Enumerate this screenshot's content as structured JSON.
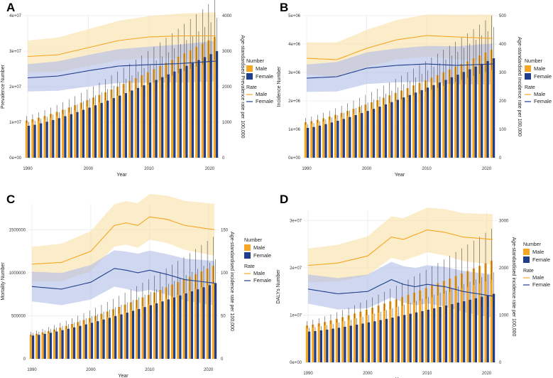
{
  "colors": {
    "male": "#F5A623",
    "female": "#1F3E8C",
    "male_band": "#F9DFA6",
    "female_band": "#AFBCE8",
    "grid": "#EBEBEB"
  },
  "legend": {
    "number_title": "Number",
    "rate_title": "Rate",
    "male": "Male",
    "female": "Female"
  },
  "chart_data": [
    {
      "letter": "A",
      "type": "bar+line",
      "years": [
        1990,
        1991,
        1992,
        1993,
        1994,
        1995,
        1996,
        1997,
        1998,
        1999,
        2000,
        2001,
        2002,
        2003,
        2004,
        2005,
        2006,
        2007,
        2008,
        2009,
        2010,
        2011,
        2012,
        2013,
        2014,
        2015,
        2016,
        2017,
        2018,
        2019,
        2020,
        2021
      ],
      "xticks": [
        1990,
        2000,
        2010,
        2020
      ],
      "xlabel": "Year",
      "ylabel_left": "Prevalence Number",
      "ylabel_right": "Age-standardised Prevalence rate per 100,000",
      "yleft_ticks": [
        "0e+00",
        "1e+07",
        "2e+07",
        "3e+07",
        "4e+07"
      ],
      "yleft_max": 40000000,
      "yright_ticks": [
        "0",
        "1000",
        "2000",
        "3000",
        "4000"
      ],
      "yright_max": 4000,
      "series_number": [
        {
          "name": "Male",
          "start": 10500000,
          "end": 34000000
        },
        {
          "name": "Female",
          "start": 9000000,
          "end": 30000000
        }
      ],
      "series_rate": [
        {
          "name": "Male",
          "points": [
            [
              1990,
              2850
            ],
            [
              1995,
              2900
            ],
            [
              2000,
              3100
            ],
            [
              2005,
              3300
            ],
            [
              2010,
              3400
            ],
            [
              2015,
              3430
            ],
            [
              2021,
              3430
            ]
          ]
        },
        {
          "name": "Female",
          "points": [
            [
              1990,
              2250
            ],
            [
              1995,
              2300
            ],
            [
              2000,
              2450
            ],
            [
              2005,
              2580
            ],
            [
              2010,
              2620
            ],
            [
              2015,
              2650
            ],
            [
              2021,
              2720
            ]
          ]
        }
      ]
    },
    {
      "letter": "B",
      "type": "bar+line",
      "years": [
        1990,
        1991,
        1992,
        1993,
        1994,
        1995,
        1996,
        1997,
        1998,
        1999,
        2000,
        2001,
        2002,
        2003,
        2004,
        2005,
        2006,
        2007,
        2008,
        2009,
        2010,
        2011,
        2012,
        2013,
        2014,
        2015,
        2016,
        2017,
        2018,
        2019,
        2020,
        2021
      ],
      "xticks": [
        1990,
        2000,
        2010,
        2020
      ],
      "xlabel": "Year",
      "ylabel_left": "Incidence Number",
      "ylabel_right": "Age-standardised Incidence rate per 100,000",
      "yleft_ticks": [
        "0e+00",
        "1e+06",
        "2e+06",
        "3e+06",
        "4e+06",
        "5e+06"
      ],
      "yleft_max": 5000000,
      "yright_ticks": [
        "0",
        "100",
        "200",
        "300",
        "400",
        "500"
      ],
      "yright_max": 500,
      "series_number": [
        {
          "name": "Male",
          "start": 1250000,
          "end": 3800000
        },
        {
          "name": "Female",
          "start": 1050000,
          "end": 3500000
        }
      ],
      "series_rate": [
        {
          "name": "Male",
          "points": [
            [
              1990,
              350
            ],
            [
              1995,
              345
            ],
            [
              2000,
              385
            ],
            [
              2005,
              415
            ],
            [
              2010,
              430
            ],
            [
              2015,
              425
            ],
            [
              2021,
              420
            ]
          ]
        },
        {
          "name": "Female",
          "points": [
            [
              1990,
              280
            ],
            [
              1995,
              285
            ],
            [
              2000,
              315
            ],
            [
              2005,
              325
            ],
            [
              2010,
              330
            ],
            [
              2015,
              325
            ],
            [
              2021,
              330
            ]
          ]
        }
      ]
    },
    {
      "letter": "C",
      "type": "bar+line",
      "years": [
        1990,
        1991,
        1992,
        1993,
        1994,
        1995,
        1996,
        1997,
        1998,
        1999,
        2000,
        2001,
        2002,
        2003,
        2004,
        2005,
        2006,
        2007,
        2008,
        2009,
        2010,
        2011,
        2012,
        2013,
        2014,
        2015,
        2016,
        2017,
        2018,
        2019,
        2020,
        2021
      ],
      "xticks": [
        1990,
        2000,
        2010,
        2020
      ],
      "xlabel": "Year",
      "ylabel_left": "Mortality Number",
      "ylabel_right": "Age-standardised incidence rate per 100,000",
      "yleft_ticks": [
        "0",
        "500000",
        "1000000",
        "1500000"
      ],
      "yleft_max": 1800000,
      "yright_ticks": [
        "0",
        "50",
        "100",
        "150"
      ],
      "yright_max": 180,
      "series_number": [
        {
          "name": "Male",
          "start": 280000,
          "end": 1080000
        },
        {
          "name": "Female",
          "start": 270000,
          "end": 880000
        }
      ],
      "series_rate": [
        {
          "name": "Male",
          "points": [
            [
              1990,
              110
            ],
            [
              1995,
              112
            ],
            [
              2000,
              125
            ],
            [
              2004,
              155
            ],
            [
              2006,
              158
            ],
            [
              2008,
              155
            ],
            [
              2010,
              165
            ],
            [
              2013,
              162
            ],
            [
              2016,
              155
            ],
            [
              2021,
              150
            ]
          ]
        },
        {
          "name": "Female",
          "points": [
            [
              1990,
              84
            ],
            [
              1995,
              81
            ],
            [
              2000,
              89
            ],
            [
              2004,
              105
            ],
            [
              2006,
              103
            ],
            [
              2008,
              100
            ],
            [
              2010,
              103
            ],
            [
              2013,
              98
            ],
            [
              2016,
              92
            ],
            [
              2021,
              88
            ]
          ]
        }
      ]
    },
    {
      "letter": "D",
      "type": "bar+line",
      "years": [
        1990,
        1991,
        1992,
        1993,
        1994,
        1995,
        1996,
        1997,
        1998,
        1999,
        2000,
        2001,
        2002,
        2003,
        2004,
        2005,
        2006,
        2007,
        2008,
        2009,
        2010,
        2011,
        2012,
        2013,
        2014,
        2015,
        2016,
        2017,
        2018,
        2019,
        2020,
        2021
      ],
      "xticks": [
        1990,
        2000,
        2010,
        2020
      ],
      "xlabel": "Year",
      "ylabel_left": "DALYs Number",
      "ylabel_right": "Age-standardised incidence rate per 100,000",
      "yleft_ticks": [
        "0e+00",
        "1e+07",
        "2e+07",
        "3e+07"
      ],
      "yleft_max": 32000000,
      "yright_ticks": [
        "0",
        "1000",
        "2000",
        "3000"
      ],
      "yright_max": 3200,
      "series_number": [
        {
          "name": "Male",
          "start": 7800000,
          "end": 21500000
        },
        {
          "name": "Female",
          "start": 6500000,
          "end": 14500000
        }
      ],
      "series_rate": [
        {
          "name": "Male",
          "points": [
            [
              1990,
              2050
            ],
            [
              1995,
              2100
            ],
            [
              2000,
              2250
            ],
            [
              2004,
              2650
            ],
            [
              2006,
              2600
            ],
            [
              2008,
              2700
            ],
            [
              2010,
              2800
            ],
            [
              2013,
              2750
            ],
            [
              2016,
              2650
            ],
            [
              2021,
              2600
            ]
          ]
        },
        {
          "name": "Female",
          "points": [
            [
              1990,
              1550
            ],
            [
              1995,
              1450
            ],
            [
              2000,
              1500
            ],
            [
              2004,
              1750
            ],
            [
              2006,
              1650
            ],
            [
              2008,
              1600
            ],
            [
              2010,
              1650
            ],
            [
              2013,
              1600
            ],
            [
              2016,
              1500
            ],
            [
              2021,
              1400
            ]
          ]
        }
      ]
    }
  ]
}
